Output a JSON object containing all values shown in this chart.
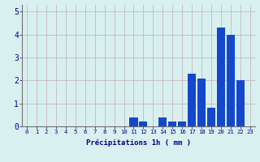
{
  "values": [
    0,
    0,
    0,
    0,
    0,
    0,
    0,
    0,
    0,
    0,
    0,
    0.4,
    0.2,
    0,
    0.4,
    0.2,
    0.2,
    2.3,
    2.1,
    0.8,
    4.3,
    4.0,
    2.0,
    0
  ],
  "bar_color": "#1448cc",
  "background_color": "#d8f0f0",
  "grid_color": "#c8b8b8",
  "xlabel": "Précipitations 1h ( mm )",
  "xlabel_color": "#00008b",
  "tick_color": "#00008b",
  "axis_color": "#707070",
  "ylim": [
    0,
    5.3
  ],
  "yticks": [
    0,
    1,
    2,
    3,
    4,
    5
  ],
  "bar_width": 0.85,
  "tick_fontsize": 5.2,
  "ylabel_fontsize": 6.5
}
